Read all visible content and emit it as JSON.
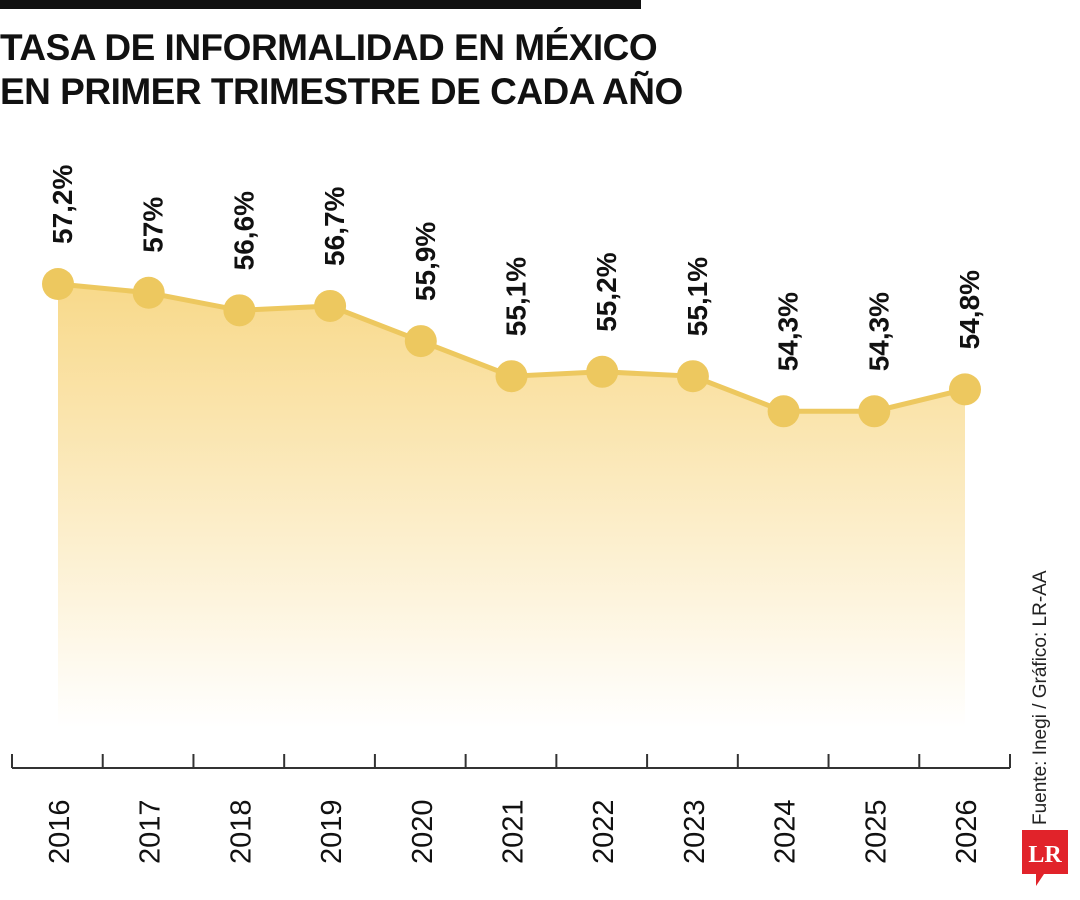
{
  "title_lines": [
    "TASA DE INFORMALIDAD EN MÉXICO",
    "EN PRIMER TRIMESTRE DE CADA AÑO"
  ],
  "source": "Fuente: Inegi / Gráfico: LR-AA",
  "logo_text": "LR",
  "colors": {
    "line": "#EDC85F",
    "area_top": "#F8D98A",
    "text": "#111111",
    "axis": "#333333",
    "logo": "#E1232A"
  },
  "chart_data": {
    "type": "area",
    "title": "TASA DE INFORMALIDAD EN MÉXICO EN PRIMER TRIMESTRE DE CADA AÑO",
    "categories": [
      "2016",
      "2017",
      "2018",
      "2019",
      "2020",
      "2021",
      "2022",
      "2023",
      "2024",
      "2025",
      "2026"
    ],
    "values": [
      57.2,
      57.0,
      56.6,
      56.7,
      55.9,
      55.1,
      55.2,
      55.1,
      54.3,
      54.3,
      54.8
    ],
    "labels": [
      "57,2%",
      "57%",
      "56,6%",
      "56,7%",
      "55,9%",
      "55,1%",
      "55,2%",
      "55,1%",
      "54,3%",
      "54,3%",
      "54,8%"
    ],
    "xlabel": "",
    "ylabel": "",
    "grid": false,
    "legend": "none"
  }
}
